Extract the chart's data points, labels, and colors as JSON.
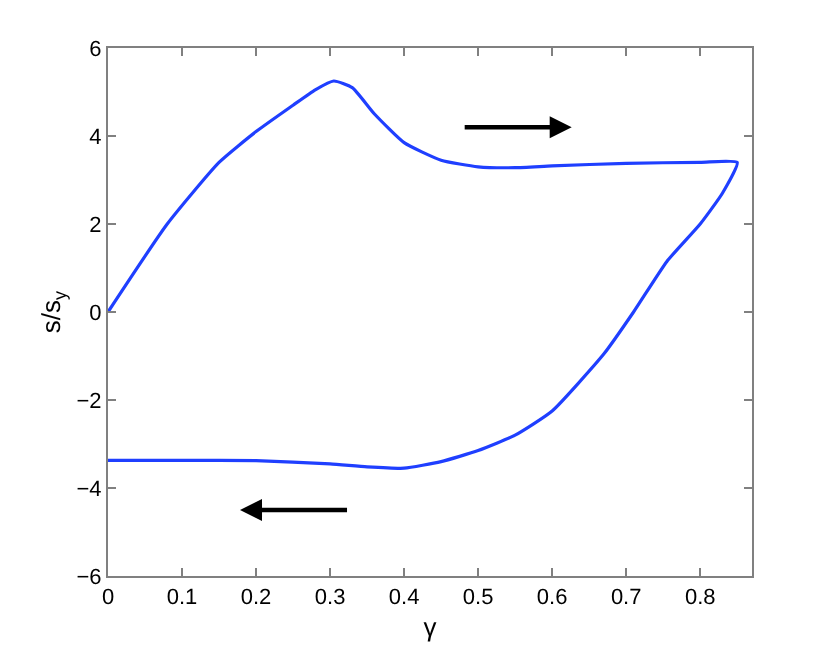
{
  "chart_data": {
    "type": "line",
    "xlabel": "γ",
    "ylabel": "s/s$_{y}$",
    "series": [
      {
        "color": "#1f3fff",
        "x": [
          0,
          0.08,
          0.15,
          0.2,
          0.25,
          0.28,
          0.305,
          0.33,
          0.36,
          0.4,
          0.45,
          0.5,
          0.55,
          0.6,
          0.7,
          0.8,
          0.85,
          0.83,
          0.8,
          0.755,
          0.71,
          0.67,
          0.6,
          0.55,
          0.5,
          0.45,
          0.4,
          0.35,
          0.3,
          0.2,
          0.1,
          0
        ],
        "values": [
          0,
          2.0,
          3.4,
          4.1,
          4.7,
          5.05,
          5.25,
          5.1,
          4.5,
          3.85,
          3.45,
          3.3,
          3.28,
          3.32,
          3.38,
          3.4,
          3.4,
          2.7,
          2.0,
          1.15,
          0.0,
          -0.95,
          -2.25,
          -2.8,
          -3.15,
          -3.4,
          -3.55,
          -3.52,
          -3.45,
          -3.38,
          -3.37,
          -3.37
        ]
      }
    ],
    "xlim": [
      0,
      0.87
    ],
    "xticks": [
      0,
      0.1,
      0.2,
      0.3,
      0.4,
      0.5,
      0.6,
      0.7,
      0.8
    ],
    "ylim": [
      -6,
      6
    ],
    "yticks": [
      -6,
      -4,
      -2,
      0,
      2,
      4,
      6
    ],
    "marker": "none",
    "line_style": "solid"
  }
}
